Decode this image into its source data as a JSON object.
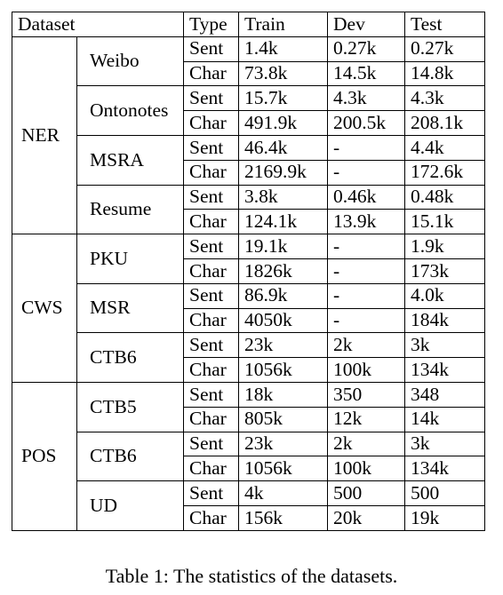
{
  "headers": [
    "Dataset",
    "Type",
    "Train",
    "Dev",
    "Test"
  ],
  "groups": [
    {
      "task": "NER",
      "datasets": [
        {
          "name": "Weibo",
          "rows": [
            {
              "type": "Sent",
              "train": "1.4k",
              "dev": "0.27k",
              "test": "0.27k"
            },
            {
              "type": "Char",
              "train": "73.8k",
              "dev": "14.5k",
              "test": "14.8k"
            }
          ]
        },
        {
          "name": "Ontonotes",
          "rows": [
            {
              "type": "Sent",
              "train": "15.7k",
              "dev": "4.3k",
              "test": "4.3k"
            },
            {
              "type": "Char",
              "train": "491.9k",
              "dev": "200.5k",
              "test": "208.1k"
            }
          ]
        },
        {
          "name": "MSRA",
          "rows": [
            {
              "type": "Sent",
              "train": "46.4k",
              "dev": "-",
              "test": "4.4k"
            },
            {
              "type": "Char",
              "train": "2169.9k",
              "dev": "-",
              "test": "172.6k"
            }
          ]
        },
        {
          "name": "Resume",
          "rows": [
            {
              "type": "Sent",
              "train": "3.8k",
              "dev": "0.46k",
              "test": "0.48k"
            },
            {
              "type": "Char",
              "train": "124.1k",
              "dev": "13.9k",
              "test": "15.1k"
            }
          ]
        }
      ]
    },
    {
      "task": "CWS",
      "datasets": [
        {
          "name": "PKU",
          "rows": [
            {
              "type": "Sent",
              "train": "19.1k",
              "dev": "-",
              "test": "1.9k"
            },
            {
              "type": "Char",
              "train": "1826k",
              "dev": "-",
              "test": "173k"
            }
          ]
        },
        {
          "name": "MSR",
          "rows": [
            {
              "type": "Sent",
              "train": "86.9k",
              "dev": "-",
              "test": "4.0k"
            },
            {
              "type": "Char",
              "train": "4050k",
              "dev": "-",
              "test": "184k"
            }
          ]
        },
        {
          "name": "CTB6",
          "rows": [
            {
              "type": "Sent",
              "train": "23k",
              "dev": "2k",
              "test": "3k"
            },
            {
              "type": "Char",
              "train": "1056k",
              "dev": "100k",
              "test": "134k"
            }
          ]
        }
      ]
    },
    {
      "task": "POS",
      "datasets": [
        {
          "name": "CTB5",
          "rows": [
            {
              "type": "Sent",
              "train": "18k",
              "dev": "350",
              "test": "348"
            },
            {
              "type": "Char",
              "train": "805k",
              "dev": "12k",
              "test": "14k"
            }
          ]
        },
        {
          "name": "CTB6",
          "rows": [
            {
              "type": "Sent",
              "train": "23k",
              "dev": "2k",
              "test": "3k"
            },
            {
              "type": "Char",
              "train": "1056k",
              "dev": "100k",
              "test": "134k"
            }
          ]
        },
        {
          "name": "UD",
          "rows": [
            {
              "type": "Sent",
              "train": "4k",
              "dev": "500",
              "test": "500"
            },
            {
              "type": "Char",
              "train": "156k",
              "dev": "20k",
              "test": "19k"
            }
          ]
        }
      ]
    }
  ],
  "caption": "Table 1: The statistics of the datasets."
}
